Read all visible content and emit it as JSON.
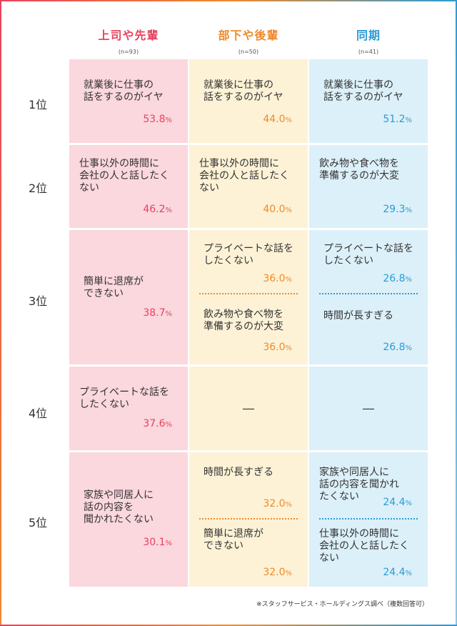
{
  "groups": [
    {
      "name": "上司や先輩",
      "n": "(n=93)",
      "color": "#e8435f"
    },
    {
      "name": "部下や後輩",
      "n": "(n=50)",
      "color": "#f08a2a"
    },
    {
      "name": "同期",
      "n": "(n=41)",
      "color": "#2a9bd6"
    }
  ],
  "ranks": [
    "1位",
    "2位",
    "3位",
    "4位",
    "5位"
  ],
  "rows": {
    "r1": {
      "g1": {
        "lines": [
          "就業後に仕事の",
          "話をするのがイヤ"
        ],
        "pct": "53.8"
      },
      "g2": {
        "lines": [
          "就業後に仕事の",
          "話をするのがイヤ"
        ],
        "pct": "44.0"
      },
      "g3": {
        "lines": [
          "就業後に仕事の",
          "話をするのがイヤ"
        ],
        "pct": "51.2"
      }
    },
    "r2": {
      "g1": {
        "lines": [
          "仕事以外の時間に",
          "会社の人と話したく",
          "ない"
        ],
        "pct": "46.2"
      },
      "g2": {
        "lines": [
          "仕事以外の時間に",
          "会社の人と話したく",
          "ない"
        ],
        "pct": "40.0"
      },
      "g3": {
        "lines": [
          "飲み物や食べ物を",
          "準備するのが大変"
        ],
        "pct": "29.3"
      }
    },
    "r3": {
      "g1": {
        "lines": [
          "簡単に退席が",
          "できない"
        ],
        "pct": "38.7"
      },
      "g2a": {
        "lines": [
          "プライベートな話を",
          "したくない"
        ],
        "pct": "36.0"
      },
      "g2b": {
        "lines": [
          "飲み物や食べ物を",
          "準備するのが大変"
        ],
        "pct": "36.0"
      },
      "g3a": {
        "lines": [
          "プライベートな話を",
          "したくない"
        ],
        "pct": "26.8"
      },
      "g3b": {
        "lines": [
          "時間が長すぎる"
        ],
        "pct": "26.8"
      }
    },
    "r4": {
      "g1": {
        "lines": [
          "プライベートな話を",
          "したくない"
        ],
        "pct": "37.6"
      },
      "g2": {
        "dash": "―"
      },
      "g3": {
        "dash": "―"
      }
    },
    "r5": {
      "g1": {
        "lines": [
          "家族や同居人に",
          "話の内容を",
          "聞かれたくない"
        ],
        "pct": "30.1"
      },
      "g2a": {
        "lines": [
          "時間が長すぎる"
        ],
        "pct": "32.0"
      },
      "g2b": {
        "lines": [
          "簡単に退席が",
          "できない"
        ],
        "pct": "32.0"
      },
      "g3a": {
        "lines": [
          "家族や同居人に",
          "話の内容を聞かれ",
          "たくない"
        ],
        "pct": "24.4"
      },
      "g3b": {
        "lines": [
          "仕事以外の時間に",
          "会社の人と話したく",
          "ない"
        ],
        "pct": "24.4"
      }
    }
  },
  "pct_unit": "%",
  "source_note": "※スタッフサービス・ホールディングス調べ（複数回答可）"
}
